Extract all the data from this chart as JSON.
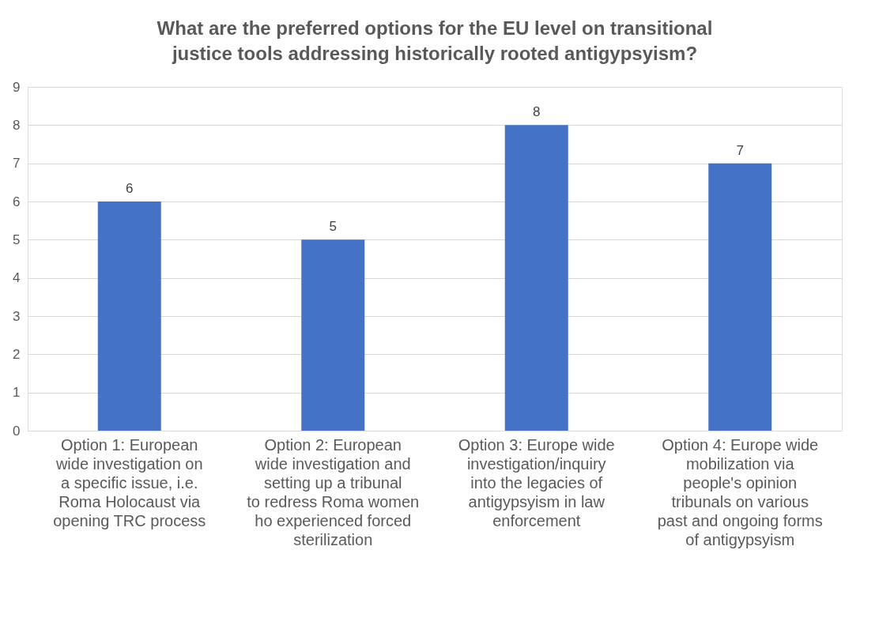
{
  "chart_data": {
    "type": "bar",
    "title": "What are the preferred options for the EU level on transitional justice tools addressing historically rooted antigypsyism?",
    "categories": [
      "Option 1: European wide investigation on a specific issue, i.e. Roma Holocaust via opening TRC process",
      "Option 2: European wide investigation and setting up a tribunal to redress Roma women ho experienced forced sterilization",
      "Option 3: Europe wide investigation/inquiry into the legacies of antigypsyism in law enforcement",
      "Option 4:  Europe wide mobilization via people's opinion tribunals on various past and ongoing forms of antigypsyism"
    ],
    "values": [
      6,
      5,
      8,
      7
    ],
    "color": "#4472c4",
    "ylim": [
      0,
      9
    ],
    "yticks": [
      0,
      1,
      2,
      3,
      4,
      5,
      6,
      7,
      8,
      9
    ],
    "grid": "y",
    "data_labels": true
  }
}
